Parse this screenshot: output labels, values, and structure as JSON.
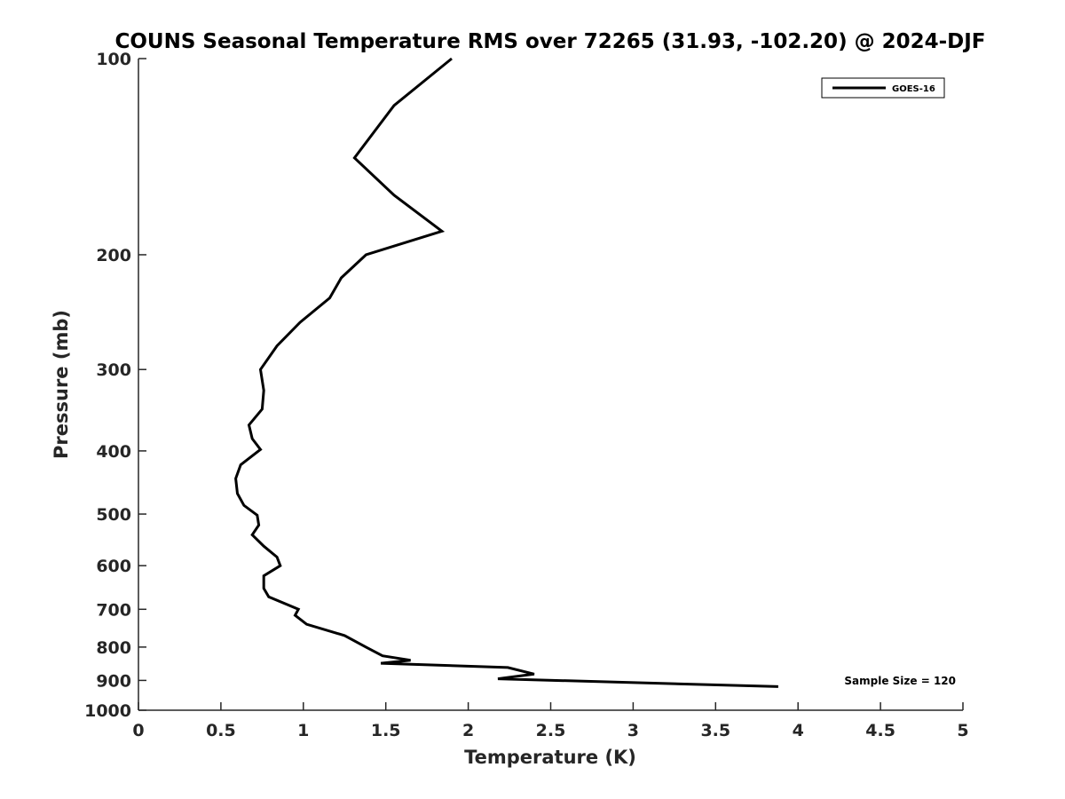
{
  "chart_data": {
    "type": "line",
    "title": "COUNS Seasonal Temperature RMS over 72265 (31.93, -102.20) @ 2024-DJF",
    "xlabel": "Temperature (K)",
    "ylabel": "Pressure (mb)",
    "xlim": [
      0,
      5
    ],
    "ylim": [
      1000,
      100
    ],
    "yscale": "log",
    "y_reversed": true,
    "grid": false,
    "legend_position": "top-right",
    "x_ticks": [
      0,
      0.5,
      1,
      1.5,
      2,
      2.5,
      3,
      3.5,
      4,
      4.5,
      5
    ],
    "x_tick_labels": [
      "0",
      "0.5",
      "1",
      "1.5",
      "2",
      "2.5",
      "3",
      "3.5",
      "4",
      "4.5",
      "5"
    ],
    "y_ticks": [
      100,
      200,
      300,
      400,
      500,
      600,
      700,
      800,
      900,
      1000
    ],
    "y_tick_labels": [
      "100",
      "200",
      "300",
      "400",
      "500",
      "600",
      "700",
      "800",
      "900",
      "1000"
    ],
    "series": [
      {
        "name": "GOES-16",
        "color": "#000000",
        "x": [
          1.9,
          1.55,
          1.31,
          1.55,
          1.84,
          1.38,
          1.23,
          1.16,
          0.98,
          0.84,
          0.74,
          0.76,
          0.75,
          0.67,
          0.69,
          0.74,
          0.62,
          0.59,
          0.6,
          0.64,
          0.72,
          0.73,
          0.69,
          0.76,
          0.84,
          0.86,
          0.76,
          0.76,
          0.79,
          0.97,
          0.95,
          1.02,
          1.25,
          1.38,
          1.48,
          1.65,
          1.47,
          2.24,
          2.4,
          2.18,
          3.88
        ],
        "y": [
          100,
          118,
          142,
          162,
          184,
          200,
          217,
          233,
          254,
          276,
          300,
          323,
          345,
          365,
          383,
          398,
          420,
          441,
          465,
          485,
          502,
          520,
          538,
          560,
          582,
          600,
          622,
          650,
          670,
          700,
          715,
          738,
          768,
          800,
          825,
          838,
          847,
          860,
          880,
          895,
          920
        ]
      }
    ],
    "annotations": [
      "Sample Size = 120"
    ]
  }
}
